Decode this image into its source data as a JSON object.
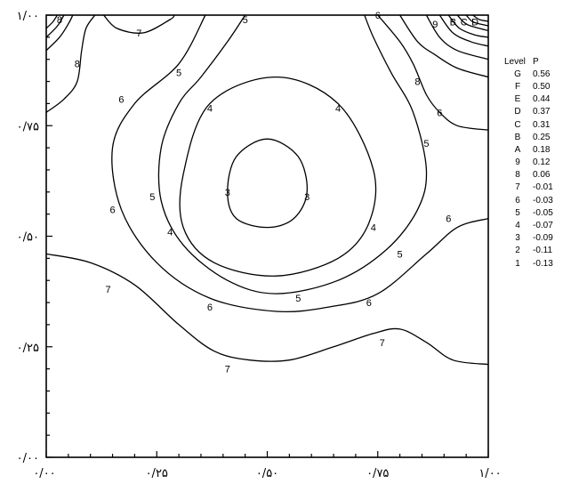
{
  "chart_data": {
    "type": "contour",
    "title": "",
    "xlabel": "",
    "ylabel": "",
    "xlim": [
      0,
      1
    ],
    "ylim": [
      0,
      1
    ],
    "x_ticks": [
      "۰/۰۰",
      "۰/۲۵",
      "۰/۵۰",
      "۰/۷۵",
      "۱/۰۰"
    ],
    "y_ticks": [
      "۰/۰۰",
      "۰/۲۵",
      "۰/۵۰",
      "۰/۷۵",
      "۱/۰۰"
    ],
    "legend": {
      "header": [
        "Level",
        "P"
      ],
      "levels": [
        {
          "level": "G",
          "value": "0.56"
        },
        {
          "level": "F",
          "value": "0.50"
        },
        {
          "level": "E",
          "value": "0.44"
        },
        {
          "level": "D",
          "value": "0.37"
        },
        {
          "level": "C",
          "value": "0.31"
        },
        {
          "level": "B",
          "value": "0.25"
        },
        {
          "level": "A",
          "value": "0.18"
        },
        {
          "level": "9",
          "value": "0.12"
        },
        {
          "level": "8",
          "value": "0.06"
        },
        {
          "level": "7",
          "value": "-0.01"
        },
        {
          "level": "6",
          "value": "-0.03"
        },
        {
          "level": "5",
          "value": "-0.05"
        },
        {
          "level": "4",
          "value": "-0.07"
        },
        {
          "level": "3",
          "value": "-0.09"
        },
        {
          "level": "2",
          "value": "-0.11"
        },
        {
          "level": "1",
          "value": "-0.13"
        }
      ]
    },
    "contours": [
      {
        "level": "3",
        "closed": true,
        "points": [
          [
            0.5,
            0.72
          ],
          [
            0.57,
            0.68
          ],
          [
            0.59,
            0.6
          ],
          [
            0.56,
            0.54
          ],
          [
            0.5,
            0.52
          ],
          [
            0.43,
            0.54
          ],
          [
            0.41,
            0.6
          ],
          [
            0.43,
            0.68
          ],
          [
            0.5,
            0.72
          ]
        ]
      },
      {
        "level": "4",
        "closed": true,
        "points": [
          [
            0.52,
            0.86
          ],
          [
            0.66,
            0.8
          ],
          [
            0.74,
            0.65
          ],
          [
            0.73,
            0.53
          ],
          [
            0.66,
            0.45
          ],
          [
            0.52,
            0.41
          ],
          [
            0.38,
            0.44
          ],
          [
            0.31,
            0.52
          ],
          [
            0.31,
            0.64
          ],
          [
            0.37,
            0.8
          ],
          [
            0.52,
            0.86
          ]
        ]
      },
      {
        "level": "5",
        "closed": false,
        "points": [
          [
            0.45,
            1.0
          ],
          [
            0.41,
            0.94
          ],
          [
            0.35,
            0.86
          ],
          [
            0.3,
            0.8
          ],
          [
            0.26,
            0.7
          ],
          [
            0.26,
            0.58
          ],
          [
            0.31,
            0.48
          ],
          [
            0.41,
            0.4
          ],
          [
            0.52,
            0.37
          ],
          [
            0.66,
            0.4
          ],
          [
            0.77,
            0.47
          ],
          [
            0.84,
            0.56
          ],
          [
            0.86,
            0.65
          ],
          [
            0.83,
            0.78
          ],
          [
            0.78,
            0.87
          ],
          [
            0.74,
            0.95
          ],
          [
            0.72,
            1.0
          ]
        ]
      },
      {
        "level": "6",
        "closed": false,
        "points": [
          [
            0.36,
            1.0
          ],
          [
            0.3,
            0.89
          ],
          [
            0.2,
            0.8
          ],
          [
            0.15,
            0.7
          ],
          [
            0.17,
            0.56
          ],
          [
            0.25,
            0.44
          ],
          [
            0.37,
            0.36
          ],
          [
            0.52,
            0.33
          ],
          [
            0.64,
            0.34
          ],
          [
            0.75,
            0.37
          ],
          [
            0.86,
            0.46
          ],
          [
            0.93,
            0.52
          ],
          [
            1.0,
            0.54
          ]
        ]
      },
      {
        "level": "6",
        "closed": false,
        "points": [
          [
            0.75,
            1.0
          ],
          [
            0.8,
            0.94
          ],
          [
            0.83,
            0.89
          ],
          [
            0.86,
            0.82
          ],
          [
            0.89,
            0.78
          ],
          [
            0.93,
            0.75
          ],
          [
            1.0,
            0.74
          ]
        ]
      },
      {
        "level": "7",
        "closed": false,
        "points": [
          [
            0.13,
            1.0
          ],
          [
            0.16,
            0.97
          ],
          [
            0.22,
            0.96
          ],
          [
            0.28,
            0.99
          ],
          [
            0.29,
            1.0
          ]
        ]
      },
      {
        "level": "7",
        "closed": false,
        "points": [
          [
            0.0,
            0.46
          ],
          [
            0.1,
            0.44
          ],
          [
            0.2,
            0.39
          ],
          [
            0.3,
            0.3
          ],
          [
            0.38,
            0.24
          ],
          [
            0.46,
            0.22
          ],
          [
            0.55,
            0.22
          ],
          [
            0.65,
            0.25
          ],
          [
            0.74,
            0.28
          ],
          [
            0.8,
            0.29
          ],
          [
            0.86,
            0.26
          ],
          [
            0.92,
            0.22
          ],
          [
            1.0,
            0.21
          ]
        ]
      },
      {
        "level": "8",
        "closed": false,
        "points": [
          [
            0.0,
            0.78
          ],
          [
            0.04,
            0.81
          ],
          [
            0.07,
            0.85
          ],
          [
            0.08,
            0.92
          ],
          [
            0.09,
            0.97
          ],
          [
            0.11,
            1.0
          ]
        ]
      },
      {
        "level": "8",
        "closed": false,
        "points": [
          [
            0.8,
            1.0
          ],
          [
            0.84,
            0.94
          ],
          [
            0.88,
            0.91
          ],
          [
            0.93,
            0.88
          ],
          [
            1.0,
            0.86
          ]
        ]
      },
      {
        "level": "9",
        "closed": false,
        "points": [
          [
            0.0,
            0.92
          ],
          [
            0.03,
            0.95
          ],
          [
            0.05,
            0.98
          ],
          [
            0.06,
            1.0
          ]
        ]
      },
      {
        "level": "9",
        "closed": false,
        "points": [
          [
            0.86,
            1.0
          ],
          [
            0.89,
            0.95
          ],
          [
            0.93,
            0.92
          ],
          [
            1.0,
            0.9
          ]
        ]
      },
      {
        "level": "A",
        "closed": false,
        "points": [
          [
            0.0,
            0.95
          ],
          [
            0.025,
            0.975
          ],
          [
            0.04,
            1.0
          ]
        ]
      },
      {
        "level": "A",
        "closed": false,
        "points": [
          [
            0.89,
            1.0
          ],
          [
            0.92,
            0.96
          ],
          [
            0.96,
            0.94
          ],
          [
            1.0,
            0.93
          ]
        ]
      },
      {
        "level": "B",
        "closed": false,
        "points": [
          [
            0.0,
            0.97
          ],
          [
            0.015,
            0.985
          ],
          [
            0.025,
            1.0
          ]
        ]
      },
      {
        "level": "B",
        "closed": false,
        "points": [
          [
            0.91,
            1.0
          ],
          [
            0.935,
            0.97
          ],
          [
            0.97,
            0.955
          ],
          [
            1.0,
            0.95
          ]
        ]
      },
      {
        "level": "C",
        "closed": false,
        "points": [
          [
            0.93,
            1.0
          ],
          [
            0.95,
            0.98
          ],
          [
            0.98,
            0.97
          ],
          [
            1.0,
            0.965
          ]
        ]
      },
      {
        "level": "D",
        "closed": false,
        "points": [
          [
            0.95,
            1.0
          ],
          [
            0.965,
            0.985
          ],
          [
            0.99,
            0.978
          ],
          [
            1.0,
            0.976
          ]
        ]
      },
      {
        "level": "E",
        "closed": false,
        "points": [
          [
            0.965,
            1.0
          ],
          [
            0.98,
            0.99
          ],
          [
            1.0,
            0.986
          ]
        ]
      }
    ],
    "contour_labels": [
      {
        "text": "3",
        "x": 0.41,
        "y": 0.6
      },
      {
        "text": "3",
        "x": 0.59,
        "y": 0.59
      },
      {
        "text": "4",
        "x": 0.37,
        "y": 0.79
      },
      {
        "text": "4",
        "x": 0.66,
        "y": 0.79
      },
      {
        "text": "4",
        "x": 0.28,
        "y": 0.51
      },
      {
        "text": "4",
        "x": 0.74,
        "y": 0.52
      },
      {
        "text": "5",
        "x": 0.3,
        "y": 0.87
      },
      {
        "text": "5",
        "x": 0.24,
        "y": 0.59
      },
      {
        "text": "5",
        "x": 0.8,
        "y": 0.46
      },
      {
        "text": "5",
        "x": 0.57,
        "y": 0.36
      },
      {
        "text": "5",
        "x": 0.45,
        "y": 0.99
      },
      {
        "text": "5",
        "x": 0.86,
        "y": 0.71
      },
      {
        "text": "6",
        "x": 0.17,
        "y": 0.81
      },
      {
        "text": "6",
        "x": 0.15,
        "y": 0.56
      },
      {
        "text": "6",
        "x": 0.37,
        "y": 0.34
      },
      {
        "text": "6",
        "x": 0.73,
        "y": 0.35
      },
      {
        "text": "6",
        "x": 0.91,
        "y": 0.54
      },
      {
        "text": "6",
        "x": 0.75,
        "y": 1.0
      },
      {
        "text": "6",
        "x": 0.89,
        "y": 0.78
      },
      {
        "text": "7",
        "x": 0.21,
        "y": 0.96
      },
      {
        "text": "7",
        "x": 0.14,
        "y": 0.38
      },
      {
        "text": "7",
        "x": 0.41,
        "y": 0.2
      },
      {
        "text": "7",
        "x": 0.76,
        "y": 0.26
      },
      {
        "text": "8",
        "x": 0.07,
        "y": 0.89
      },
      {
        "text": "8",
        "x": 0.84,
        "y": 0.85
      },
      {
        "text": "9",
        "x": 0.88,
        "y": 0.98
      },
      {
        "text": "8",
        "x": 0.03,
        "y": 0.99
      },
      {
        "text": "B",
        "x": 0.92,
        "y": 0.985
      },
      {
        "text": "C",
        "x": 0.945,
        "y": 0.985
      },
      {
        "text": "D",
        "x": 0.97,
        "y": 0.985
      }
    ]
  }
}
